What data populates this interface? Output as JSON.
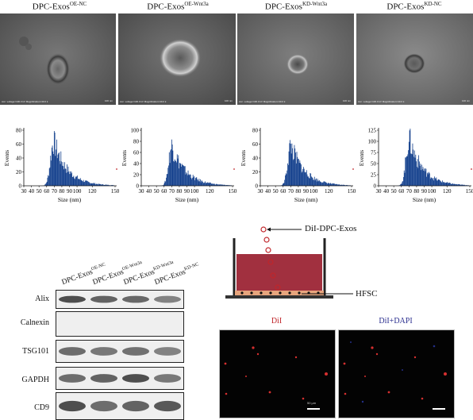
{
  "tem_panels": [
    {
      "name": "DPC-Exos",
      "sup": "OE-NC",
      "caption": "Acc. voltage=100.0 kV  Magnification=40.0 k",
      "scale": "100 nm"
    },
    {
      "name": "DPC-Exos",
      "sup": "OE-Wnt3a",
      "caption": "Acc. voltage=100.0 kV  Magnification=40.0 k",
      "scale": "100 nm"
    },
    {
      "name": "DPC-Exos",
      "sup": "KD-Wnt3a",
      "caption": "Acc. voltage=100.0 kV  Magnification=40.0 k",
      "scale": "100 nm"
    },
    {
      "name": "DPC-Exos",
      "sup": "KD-NC",
      "caption": "Acc. voltage=100.0 kV  Magnification=40.0 k",
      "scale": "100 nm"
    }
  ],
  "chart_data": [
    {
      "type": "bar",
      "xlabel": "Size (nm)",
      "ylabel": "Events",
      "xlim": [
        30,
        150
      ],
      "ylim": [
        0,
        80
      ],
      "x_ticks": [
        30,
        40,
        50,
        60,
        70,
        80,
        90,
        100,
        120,
        150
      ],
      "y_ticks": [
        0,
        20,
        40,
        60,
        80
      ],
      "x_tick_labels": [
        "30",
        "40",
        "50",
        "60",
        "70",
        "80",
        "90",
        "100",
        "120",
        "150"
      ],
      "y_tick_labels": [
        "0",
        "20",
        "40",
        "60",
        "80"
      ],
      "peak_x": 69,
      "peak_y": 73
    },
    {
      "type": "bar",
      "xlabel": "Size (nm)",
      "ylabel": "Events",
      "xlim": [
        30,
        150
      ],
      "ylim": [
        0,
        100
      ],
      "x_ticks": [
        30,
        40,
        50,
        60,
        70,
        80,
        90,
        100,
        120,
        150
      ],
      "y_ticks": [
        0,
        20,
        40,
        60,
        80,
        100
      ],
      "x_tick_labels": [
        "30",
        "40",
        "50",
        "60",
        "70",
        "80",
        "90",
        "100",
        "120",
        "150"
      ],
      "y_tick_labels": [
        "0",
        "20",
        "40",
        "60",
        "80",
        "100"
      ],
      "peak_x": 70,
      "peak_y": 82
    },
    {
      "type": "bar",
      "xlabel": "Size (nm)",
      "ylabel": "Events",
      "xlim": [
        30,
        150
      ],
      "ylim": [
        0,
        80
      ],
      "x_ticks": [
        30,
        40,
        50,
        60,
        70,
        80,
        90,
        100,
        120,
        150
      ],
      "y_ticks": [
        0,
        20,
        40,
        60,
        80
      ],
      "x_tick_labels": [
        "30",
        "40",
        "50",
        "60",
        "70",
        "80",
        "90",
        "100",
        "120",
        "150"
      ],
      "y_tick_labels": [
        "0",
        "20",
        "40",
        "60",
        "80"
      ],
      "peak_x": 70,
      "peak_y": 66
    },
    {
      "type": "bar",
      "xlabel": "Size (nm)",
      "ylabel": "Events",
      "xlim": [
        30,
        150
      ],
      "ylim": [
        0,
        125
      ],
      "x_ticks": [
        30,
        40,
        50,
        60,
        70,
        80,
        90,
        100,
        120,
        150
      ],
      "y_ticks": [
        0,
        25,
        50,
        75,
        100,
        125
      ],
      "x_tick_labels": [
        "30",
        "40",
        "50",
        "60",
        "70",
        "80",
        "90",
        "100",
        "120",
        "150"
      ],
      "y_tick_labels": [
        "0",
        "25",
        "50",
        "75",
        "100",
        "125"
      ],
      "peak_x": 70,
      "peak_y": 120
    }
  ],
  "western": {
    "lanes": [
      {
        "name": "DPC-Exos",
        "sup": "OE-NC"
      },
      {
        "name": "DPC-Exos",
        "sup": "OE-Wnt3a"
      },
      {
        "name": "DPC-Exos",
        "sup": "KD-Wnt3a"
      },
      {
        "name": "DPC-Exos",
        "sup": "KD-NC"
      }
    ],
    "rows": [
      {
        "label": "Alix",
        "intensity": [
          0.85,
          0.75,
          0.72,
          0.6
        ]
      },
      {
        "label": "Calnexin",
        "intensity": [
          0,
          0,
          0,
          0
        ]
      },
      {
        "label": "TSG101",
        "intensity": [
          0.7,
          0.65,
          0.68,
          0.6
        ]
      },
      {
        "label": "GAPDH",
        "intensity": [
          0.7,
          0.75,
          0.85,
          0.65
        ]
      },
      {
        "label": "CD9",
        "intensity": [
          0.85,
          0.7,
          0.75,
          0.8
        ]
      }
    ]
  },
  "schematic": {
    "exos_label": "DiI-DPC-Exos",
    "cell_label": "HFSC",
    "medium_color": "#a1303f",
    "cell_color": "#e7a57d"
  },
  "fluorescence": {
    "panels": [
      {
        "title": "DiI",
        "title_color": "#c0262b"
      },
      {
        "title": "DiI+DAPI",
        "title_color": "#2b2f8f"
      }
    ],
    "scale_text": "50 μm"
  }
}
